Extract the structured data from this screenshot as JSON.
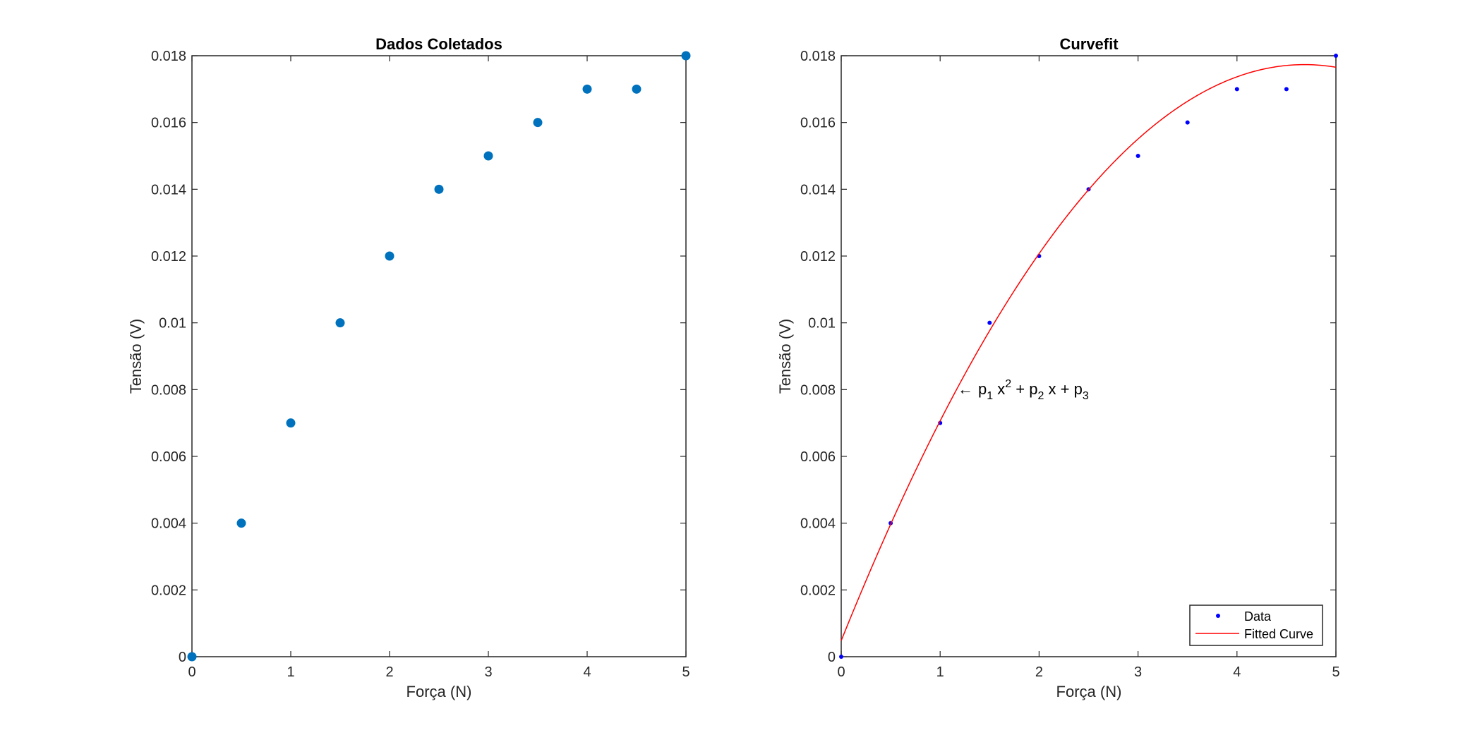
{
  "chart_data": [
    {
      "type": "scatter",
      "title": "Dados Coletados",
      "xlabel": "Força (N)",
      "ylabel": "Tensão (V)",
      "xlim": [
        0,
        5
      ],
      "ylim": [
        0,
        0.018
      ],
      "xticks": [
        "0",
        "1",
        "2",
        "3",
        "4",
        "5"
      ],
      "yticks": [
        "0",
        "0.002",
        "0.004",
        "0.006",
        "0.008",
        "0.01",
        "0.012",
        "0.014",
        "0.016",
        "0.018"
      ],
      "grid": false,
      "series": [
        {
          "color": "#0072BD",
          "marker": "filled-circle",
          "x": [
            0,
            0.5,
            1,
            1.5,
            2,
            2.5,
            3,
            3.5,
            4,
            4.5,
            5
          ],
          "y": [
            0,
            0.004,
            0.007,
            0.01,
            0.012,
            0.014,
            0.015,
            0.016,
            0.017,
            0.017,
            0.018
          ]
        }
      ]
    },
    {
      "type": "scatter",
      "title": "Curvefit",
      "xlabel": "Força (N)",
      "ylabel": "Tensão (V)",
      "xlim": [
        0,
        5
      ],
      "ylim": [
        0,
        0.018
      ],
      "xticks": [
        "0",
        "1",
        "2",
        "3",
        "4",
        "5"
      ],
      "yticks": [
        "0",
        "0.002",
        "0.004",
        "0.006",
        "0.008",
        "0.01",
        "0.012",
        "0.014",
        "0.016",
        "0.018"
      ],
      "grid": false,
      "legend_position": "bottom-right",
      "series": [
        {
          "name": "Data",
          "color": "#0000FF",
          "marker": "dot",
          "x": [
            0,
            0.5,
            1,
            1.5,
            2,
            2.5,
            3,
            3.5,
            4,
            4.5,
            5
          ],
          "y": [
            0,
            0.004,
            0.007,
            0.01,
            0.012,
            0.014,
            0.015,
            0.016,
            0.017,
            0.017,
            0.018
          ]
        },
        {
          "name": "Fitted Curve",
          "color": "#FF0000",
          "line": true,
          "model": "p1*x^2 + p2*x + p3",
          "coefficients": {
            "p1": -0.000787,
            "p2": 0.00737,
            "p3": 0.00048
          }
        }
      ],
      "annotation": {
        "arrow": "←",
        "text_parts": [
          "p",
          "1",
          " x",
          "2",
          " + p",
          "2",
          " x + p",
          "3"
        ],
        "x": 1.2,
        "y": 0.008
      }
    }
  ]
}
